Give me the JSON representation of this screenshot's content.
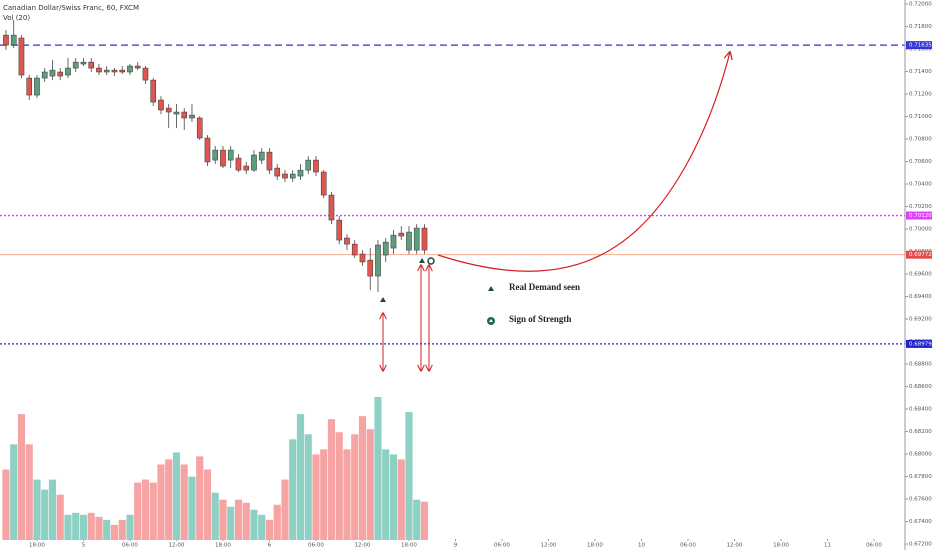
{
  "chart_data": {
    "type": "candlestick",
    "title": "Canadian Dollar/Swiss Franc, 60, FXCM",
    "subtitle": "Vol (20)",
    "up_color": "#5e9e7d",
    "down_color": "#e05550",
    "vol_up_color": "#8fd0c4",
    "vol_down_color": "#f5a3a3",
    "ohlc": [
      [
        0.71724,
        0.71769,
        0.71591,
        0.71636
      ],
      [
        0.71636,
        0.71858,
        0.71609,
        0.71724
      ],
      [
        0.71698,
        0.71724,
        0.71342,
        0.71369
      ],
      [
        0.71342,
        0.71369,
        0.71147,
        0.71191
      ],
      [
        0.71191,
        0.71369,
        0.71164,
        0.71342
      ],
      [
        0.71342,
        0.71431,
        0.71307,
        0.71396
      ],
      [
        0.7136,
        0.71502,
        0.71324,
        0.71413
      ],
      [
        0.71396,
        0.71431,
        0.71324,
        0.7136
      ],
      [
        0.71369,
        0.7152,
        0.71342,
        0.71431
      ],
      [
        0.71431,
        0.7152,
        0.71396,
        0.71484
      ],
      [
        0.71467,
        0.7152,
        0.71449,
        0.71484
      ],
      [
        0.71484,
        0.7152,
        0.71396,
        0.71431
      ],
      [
        0.71431,
        0.71467,
        0.71369,
        0.71396
      ],
      [
        0.71396,
        0.71449,
        0.71369,
        0.71413
      ],
      [
        0.71413,
        0.71431,
        0.7136,
        0.71396
      ],
      [
        0.71413,
        0.71449,
        0.71378,
        0.71396
      ],
      [
        0.71396,
        0.71467,
        0.71369,
        0.71449
      ],
      [
        0.71449,
        0.71484,
        0.71413,
        0.71431
      ],
      [
        0.71431,
        0.71449,
        0.71289,
        0.71324
      ],
      [
        0.71324,
        0.71342,
        0.71093,
        0.71129
      ],
      [
        0.71147,
        0.71182,
        0.71022,
        0.71058
      ],
      [
        0.71075,
        0.71111,
        0.70898,
        0.7104
      ],
      [
        0.71022,
        0.71111,
        0.70898,
        0.7104
      ],
      [
        0.7104,
        0.71075,
        0.7088,
        0.70987
      ],
      [
        0.70987,
        0.71111,
        0.70951,
        0.71013
      ],
      [
        0.70987,
        0.71004,
        0.70791,
        0.70809
      ],
      [
        0.70809,
        0.70835,
        0.7056,
        0.70596
      ],
      [
        0.70613,
        0.70738,
        0.70578,
        0.70702
      ],
      [
        0.70702,
        0.70738,
        0.70542,
        0.7056
      ],
      [
        0.70613,
        0.70738,
        0.70542,
        0.70702
      ],
      [
        0.70631,
        0.70667,
        0.70507,
        0.70524
      ],
      [
        0.7056,
        0.70596,
        0.70489,
        0.70524
      ],
      [
        0.70524,
        0.70702,
        0.70507,
        0.70658
      ],
      [
        0.70613,
        0.7072,
        0.70578,
        0.70684
      ],
      [
        0.70684,
        0.7072,
        0.70489,
        0.70524
      ],
      [
        0.70542,
        0.70578,
        0.70436,
        0.70471
      ],
      [
        0.70489,
        0.70524,
        0.70418,
        0.70453
      ],
      [
        0.70453,
        0.70524,
        0.70418,
        0.70489
      ],
      [
        0.70471,
        0.70578,
        0.70436,
        0.70524
      ],
      [
        0.70524,
        0.70649,
        0.70489,
        0.70613
      ],
      [
        0.70613,
        0.70649,
        0.70471,
        0.70507
      ],
      [
        0.70507,
        0.70524,
        0.70275,
        0.70302
      ],
      [
        0.70302,
        0.70329,
        0.70044,
        0.7008
      ],
      [
        0.7008,
        0.70115,
        0.69866,
        0.69902
      ],
      [
        0.6992,
        0.69955,
        0.69813,
        0.69866
      ],
      [
        0.69866,
        0.69902,
        0.69742,
        0.69769
      ],
      [
        0.69778,
        0.69813,
        0.69671,
        0.69707
      ],
      [
        0.69724,
        0.69831,
        0.69457,
        0.69582
      ],
      [
        0.69582,
        0.69902,
        0.6944,
        0.69858
      ],
      [
        0.69769,
        0.6992,
        0.69707,
        0.69884
      ],
      [
        0.69831,
        0.69991,
        0.69778,
        0.69946
      ],
      [
        0.69964,
        0.70026,
        0.69902,
        0.69938
      ],
      [
        0.69813,
        0.70026,
        0.69778,
        0.69973
      ],
      [
        0.69813,
        0.70044,
        0.69778,
        0.70009
      ],
      [
        0.70009,
        0.70044,
        0.69778,
        0.69813
      ]
    ],
    "volume": [
      70,
      95,
      125,
      95,
      60,
      50,
      60,
      45,
      25,
      27,
      25,
      27,
      23,
      20,
      15,
      20,
      25,
      57,
      60,
      57,
      75,
      80,
      87,
      75,
      63,
      83,
      70,
      47,
      40,
      33,
      40,
      37,
      30,
      25,
      20,
      35,
      60,
      100,
      125,
      105,
      85,
      90,
      120,
      107,
      90,
      105,
      123,
      110,
      142,
      90,
      85,
      80,
      127,
      40,
      38
    ],
    "ylim": [
      0.67147,
      0.72036
    ],
    "xlim": [
      -0.77,
      116
    ],
    "yticks": [
      {
        "value": 0.72,
        "label": "0.72000"
      },
      {
        "value": 0.718,
        "label": "0.71800"
      },
      {
        "value": 0.716,
        "label": "0.71600"
      },
      {
        "value": 0.714,
        "label": "0.71400"
      },
      {
        "value": 0.712,
        "label": "0.71200"
      },
      {
        "value": 0.71,
        "label": "0.71000"
      },
      {
        "value": 0.708,
        "label": "0.70800"
      },
      {
        "value": 0.706,
        "label": "0.70600"
      },
      {
        "value": 0.704,
        "label": "0.70400"
      },
      {
        "value": 0.702,
        "label": "0.70200"
      },
      {
        "value": 0.7,
        "label": "0.70000"
      },
      {
        "value": 0.698,
        "label": "0.69800"
      },
      {
        "value": 0.696,
        "label": "0.69600"
      },
      {
        "value": 0.694,
        "label": "0.69400"
      },
      {
        "value": 0.692,
        "label": "0.69200"
      },
      {
        "value": 0.69,
        "label": "0.69000"
      },
      {
        "value": 0.688,
        "label": "0.68800"
      },
      {
        "value": 0.686,
        "label": "0.68600"
      },
      {
        "value": 0.684,
        "label": "0.68400"
      },
      {
        "value": 0.682,
        "label": "0.68200"
      },
      {
        "value": 0.68,
        "label": "0.68000"
      },
      {
        "value": 0.678,
        "label": "0.67800"
      },
      {
        "value": 0.676,
        "label": "0.67600"
      },
      {
        "value": 0.674,
        "label": "0.67400"
      },
      {
        "value": 0.672,
        "label": "0.67200"
      }
    ],
    "xticks": [
      {
        "value": 4,
        "label": "18:00"
      },
      {
        "value": 10,
        "label": "5"
      },
      {
        "value": 16,
        "label": "06:00"
      },
      {
        "value": 22,
        "label": "12:00"
      },
      {
        "value": 28,
        "label": "18:00"
      },
      {
        "value": 34,
        "label": "6"
      },
      {
        "value": 40,
        "label": "06:00"
      },
      {
        "value": 46,
        "label": "12:00"
      },
      {
        "value": 52,
        "label": "18:00"
      },
      {
        "value": 58,
        "label": "9"
      },
      {
        "value": 64,
        "label": "06:00"
      },
      {
        "value": 70,
        "label": "12:00"
      },
      {
        "value": 76,
        "label": "18:00"
      },
      {
        "value": 82,
        "label": "10"
      },
      {
        "value": 88,
        "label": "06:00"
      },
      {
        "value": 94,
        "label": "12:00"
      },
      {
        "value": 100,
        "label": "18:00"
      },
      {
        "value": 106,
        "label": "11"
      },
      {
        "value": 112,
        "label": "06:00"
      }
    ],
    "levels": [
      {
        "value": 0.71635,
        "label": "0.71635",
        "color": "#3434d8",
        "dash": "7 4",
        "text_color": "#ffffff"
      },
      {
        "value": 0.7012,
        "label": "0.70120",
        "color": "#e040fb",
        "dash": "2 2",
        "text_color": "#ffffff"
      },
      {
        "value": 0.69772,
        "label": "0.69772",
        "color": "#f4a07c",
        "dash": "none",
        "text_color": "#ffffff",
        "box_color": "#e54b4b"
      },
      {
        "value": 0.68979,
        "label": "0.68979",
        "color": "#2222c8",
        "dash": "2 2",
        "text_color": "#ffffff"
      }
    ],
    "legend": [
      "Real Demand seen",
      "Sign of Strength"
    ]
  }
}
